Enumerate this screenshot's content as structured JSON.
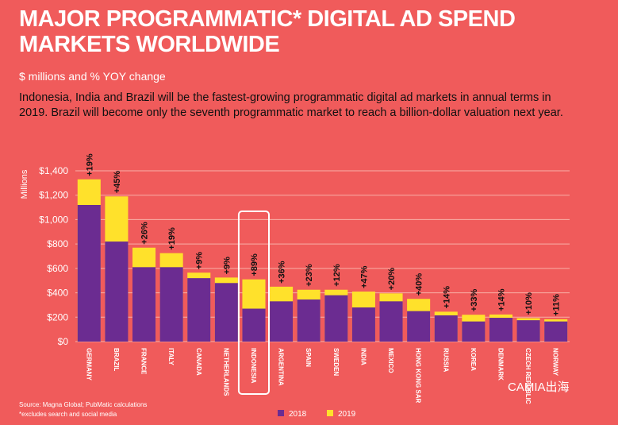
{
  "chart_data": {
    "type": "bar",
    "title": "MAJOR PROGRAMMATIC* DIGITAL AD SPEND MARKETS WORLDWIDE",
    "subtitle": "$ millions and % YOY change",
    "description": "Indonesia, India and Brazil will be the fastest-growing programmatic digital ad markets in annual terms in 2019. Brazil will become only the seventh programmatic market to reach a billion-dollar valuation next year.",
    "y_label": "Millions",
    "categories": [
      "GERMANY",
      "BRAZIL",
      "FRANCE",
      "ITALY",
      "CANADA",
      "NETHERLANDS",
      "INDONESIA",
      "ARGENTINA",
      "SPAIN",
      "SWEDEN",
      "INDIA",
      "MEXICO",
      "HONG KONG SAR",
      "RUSSIA",
      "KOREA",
      "DENMARK",
      "CZECH REPUBLIC",
      "NORWAY"
    ],
    "series": [
      {
        "name": "2019",
        "color": "#ffe12b",
        "values": [
          1330,
          1190,
          770,
          725,
          565,
          525,
          510,
          450,
          425,
          425,
          410,
          395,
          350,
          245,
          220,
          222,
          192,
          183
        ]
      },
      {
        "name": "2018",
        "color": "#6b2c91",
        "values": [
          1120,
          820,
          610,
          610,
          520,
          480,
          270,
          330,
          345,
          380,
          280,
          330,
          250,
          215,
          165,
          195,
          175,
          165
        ]
      }
    ],
    "growth_labels": [
      "+19%",
      "+45%",
      "+26%",
      "+19%",
      "+9%",
      "+9%",
      "+89%",
      "+36%",
      "+23%",
      "+12%",
      "+47%",
      "+20%",
      "+40%",
      "+14%",
      "+33%",
      "+14%",
      "+10%",
      "+11%"
    ],
    "ylim": [
      0,
      1400
    ],
    "yticks": [
      {
        "value": 0,
        "label": "$0"
      },
      {
        "value": 200,
        "label": "$200"
      },
      {
        "value": 400,
        "label": "$400"
      },
      {
        "value": 600,
        "label": "$600"
      },
      {
        "value": 800,
        "label": "$800"
      },
      {
        "value": 1000,
        "label": "$1,000"
      },
      {
        "value": 1200,
        "label": "$1,200"
      },
      {
        "value": 1400,
        "label": "$1,400"
      }
    ],
    "grid": true,
    "source": "Source: Magna Global; PubMatic calculations",
    "footnote": "*excludes search and social media",
    "watermark": "CAMIA出海"
  }
}
